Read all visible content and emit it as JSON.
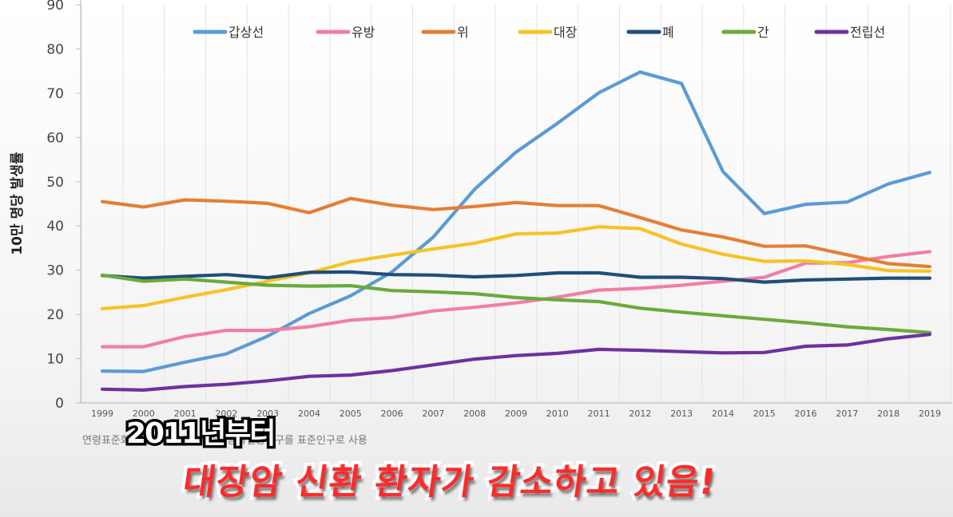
{
  "chart_data": {
    "type": "line",
    "ylabel": "10만 명당 발생률",
    "ylim": [
      0,
      90
    ],
    "yticks": [
      0,
      10,
      20,
      30,
      40,
      50,
      60,
      70,
      80,
      90
    ],
    "x": [
      "1999",
      "2000",
      "2001",
      "2002",
      "2003",
      "2004",
      "2005",
      "2006",
      "2007",
      "2008",
      "2009",
      "2010",
      "2011",
      "2012",
      "2013",
      "2014",
      "2015",
      "2016",
      "2017",
      "2018",
      "2019"
    ],
    "grid": "vertical",
    "legend_position": "top",
    "series": [
      {
        "name": "갑상선",
        "color": "#5b9bd5",
        "values": [
          7.2,
          7.1,
          9.2,
          11.1,
          15.1,
          20.2,
          24.2,
          29.6,
          37.5,
          48.3,
          56.7,
          63.2,
          70.1,
          74.8,
          72.2,
          52.3,
          42.8,
          44.9,
          45.4,
          49.5,
          52.1
        ]
      },
      {
        "name": "유방",
        "color": "#f17fa3",
        "values": [
          12.7,
          12.7,
          15.0,
          16.4,
          16.4,
          17.2,
          18.7,
          19.3,
          20.8,
          21.6,
          22.6,
          23.9,
          25.5,
          25.9,
          26.6,
          27.5,
          28.4,
          31.6,
          31.7,
          33.1,
          34.2
        ]
      },
      {
        "name": "위",
        "color": "#e67e34",
        "values": [
          45.5,
          44.3,
          45.9,
          45.6,
          45.1,
          43.0,
          46.2,
          44.7,
          43.7,
          44.4,
          45.3,
          44.6,
          44.6,
          41.9,
          39.1,
          37.5,
          35.4,
          35.5,
          33.5,
          31.5,
          30.8
        ]
      },
      {
        "name": "대장",
        "color": "#f6c324",
        "values": [
          21.3,
          22.0,
          23.9,
          25.6,
          27.5,
          29.4,
          31.9,
          33.4,
          34.8,
          36.1,
          38.2,
          38.4,
          39.8,
          39.4,
          35.9,
          33.6,
          32.0,
          32.1,
          31.3,
          29.9,
          29.8
        ]
      },
      {
        "name": "폐",
        "color": "#1f4e79",
        "values": [
          28.8,
          28.2,
          28.6,
          29.0,
          28.3,
          29.5,
          29.6,
          29.0,
          28.9,
          28.5,
          28.8,
          29.4,
          29.4,
          28.4,
          28.4,
          28.1,
          27.3,
          27.8,
          28.0,
          28.2,
          28.2
        ]
      },
      {
        "name": "간",
        "color": "#6aaa3a",
        "values": [
          28.9,
          27.5,
          28.0,
          27.3,
          26.6,
          26.4,
          26.5,
          25.4,
          25.1,
          24.7,
          23.8,
          23.3,
          22.9,
          21.4,
          20.5,
          19.7,
          18.9,
          18.1,
          17.2,
          16.6,
          15.9
        ]
      },
      {
        "name": "전립선",
        "color": "#7030a0",
        "values": [
          3.1,
          2.9,
          3.7,
          4.2,
          5.0,
          6.0,
          6.3,
          7.3,
          8.6,
          9.9,
          10.7,
          11.2,
          12.1,
          11.9,
          11.6,
          11.3,
          11.4,
          12.8,
          13.1,
          14.5,
          15.5
        ]
      }
    ]
  },
  "note": "연령표준화 발생률, 2000년 주민등록연앙인구를 표준인구로 사용",
  "caption": {
    "line1": "2011년부터",
    "line2": "대장암 신환 환자가 감소하고 있음!"
  }
}
